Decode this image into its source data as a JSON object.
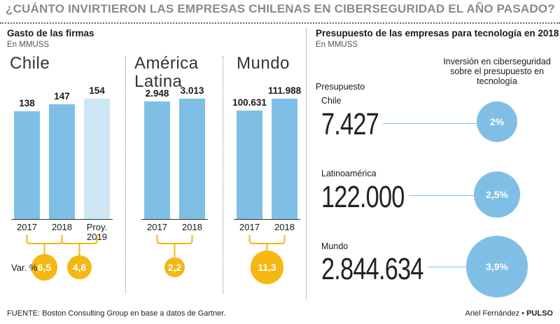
{
  "title": "¿CUÁNTO INVIRTIERON LAS EMPRESAS CHILENAS EN CIBERSEGURIDAD EL AÑO PASADO?",
  "left": {
    "title": "Gasto de las firmas",
    "unit": "En MMUSS",
    "var_label": "Var. %"
  },
  "right": {
    "title": "Presupuesto de las empresas para tecnología en 2018",
    "unit": "En MMUSS",
    "col_budget": "Presupuesto",
    "col_share": "Inversión en ciberseguridad sobre el presupuesto en tecnología"
  },
  "footer": {
    "source": "FUENTE: Boston Consulting Group en base a datos de Gartner.",
    "author": "Ariel Fernández",
    "brand": "PULSO"
  },
  "colors": {
    "bar": "#7fbfe6",
    "bar_projection": "#cfe6f4",
    "variation": "#f5b712",
    "share_circle": "#7fbfe6"
  },
  "chart_data": [
    {
      "type": "bar",
      "title": "Chile",
      "categories": [
        "2017",
        "2018",
        "Proy. 2019"
      ],
      "values": [
        138,
        147,
        154
      ],
      "value_labels": [
        "138",
        "147",
        "154"
      ],
      "projected": [
        false,
        false,
        true
      ],
      "variations": [
        {
          "from": "2017",
          "to": "2018",
          "label": "6,5",
          "value": 6.5
        },
        {
          "from": "2018",
          "to": "Proy. 2019",
          "label": "4,8",
          "value": 4.8
        }
      ]
    },
    {
      "type": "bar",
      "title": "América Latina",
      "categories": [
        "2017",
        "2018"
      ],
      "values": [
        2948,
        3013
      ],
      "value_labels": [
        "2.948",
        "3.013"
      ],
      "variations": [
        {
          "from": "2017",
          "to": "2018",
          "label": "2,2",
          "value": 2.2
        }
      ]
    },
    {
      "type": "bar",
      "title": "Mundo",
      "categories": [
        "2017",
        "2018"
      ],
      "values": [
        100631,
        111988
      ],
      "value_labels": [
        "100.631",
        "111.988"
      ],
      "variations": [
        {
          "from": "2017",
          "to": "2018",
          "label": "11,3",
          "value": 11.3
        }
      ]
    },
    {
      "type": "table",
      "rows": [
        {
          "region": "Chile",
          "budget_label": "7.427",
          "budget": 7427,
          "share_label": "2%",
          "share": 2.0
        },
        {
          "region": "Latinoamérica",
          "budget_label": "122.000",
          "budget": 122000,
          "share_label": "2,5%",
          "share": 2.5
        },
        {
          "region": "Mundo",
          "budget_label": "2.844.634",
          "budget": 2844634,
          "share_label": "3,9%",
          "share": 3.9
        }
      ]
    }
  ]
}
